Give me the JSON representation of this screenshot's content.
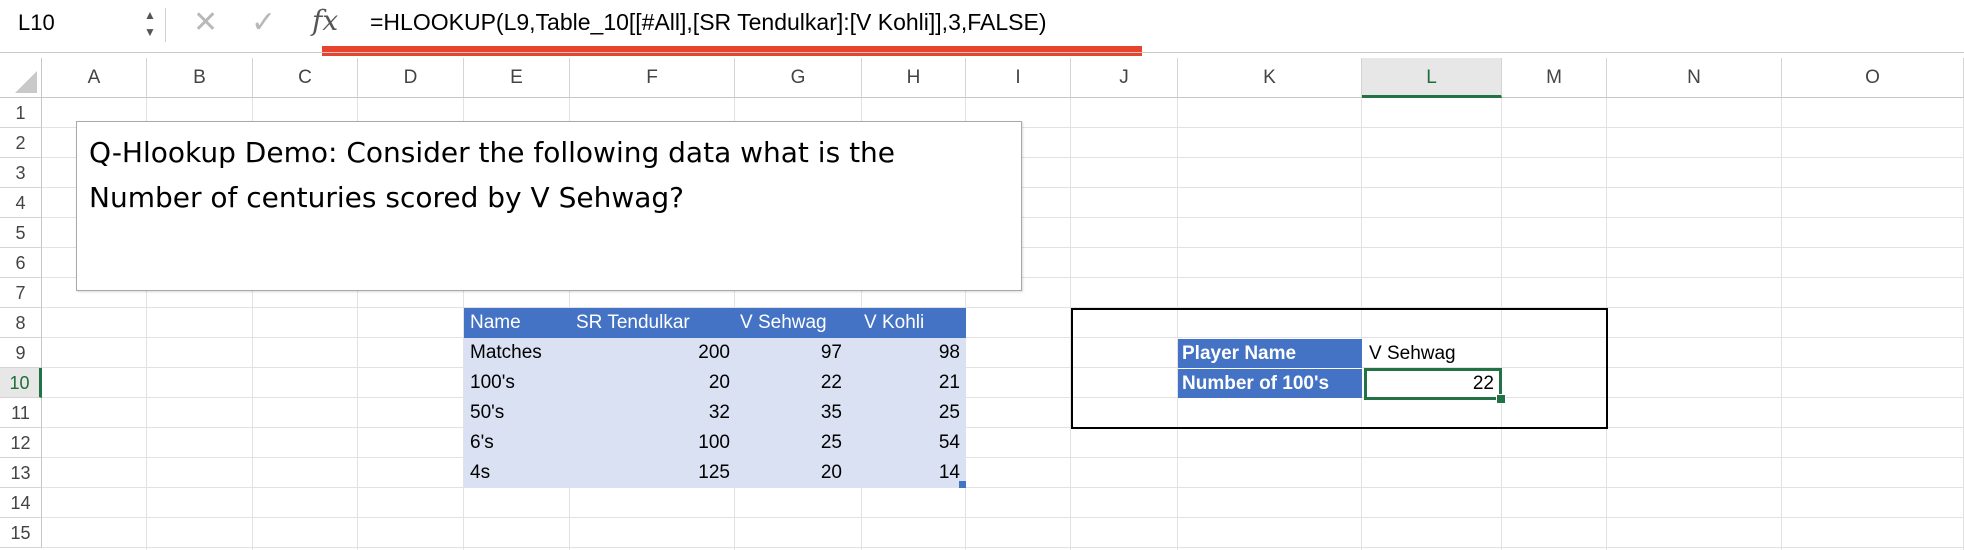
{
  "formula_bar": {
    "name_box": "L10",
    "formula": "=HLOOKUP(L9,Table_10[[#All],[SR Tendulkar]:[V Kohli]],3,FALSE)",
    "icons": [
      "cancel-icon",
      "enter-icon",
      "function-icon"
    ]
  },
  "columns": [
    "A",
    "B",
    "C",
    "D",
    "E",
    "F",
    "G",
    "H",
    "I",
    "J",
    "K",
    "L",
    "M",
    "N",
    "O"
  ],
  "rows": [
    "1",
    "2",
    "3",
    "4",
    "5",
    "6",
    "7",
    "8",
    "9",
    "10",
    "11",
    "12",
    "13",
    "14",
    "15"
  ],
  "active_cell": {
    "column": "L",
    "row": "10"
  },
  "textbox": {
    "line1": "Q-Hlookup Demo: Consider the following data what is the",
    "line2": "Number of centuries scored by V Sehwag?"
  },
  "table": {
    "headers": [
      "Name",
      "SR Tendulkar",
      "V Sehwag",
      "V Kohli"
    ],
    "rows": [
      [
        "Matches",
        "200",
        "97",
        "98"
      ],
      [
        "100's",
        "20",
        "22",
        "21"
      ],
      [
        "50's",
        "32",
        "35",
        "25"
      ],
      [
        "6's",
        "100",
        "25",
        "54"
      ],
      [
        "4s",
        "125",
        "20",
        "14"
      ]
    ]
  },
  "lookup": {
    "player_label": "Player Name",
    "player_value": "V Sehwag",
    "count_label": "Number of 100's",
    "count_value": "22"
  },
  "colors": {
    "table_header": "#4472c4",
    "table_body": "#d9e1f2",
    "selection": "#217346",
    "formula_highlight": "#e8432c"
  }
}
